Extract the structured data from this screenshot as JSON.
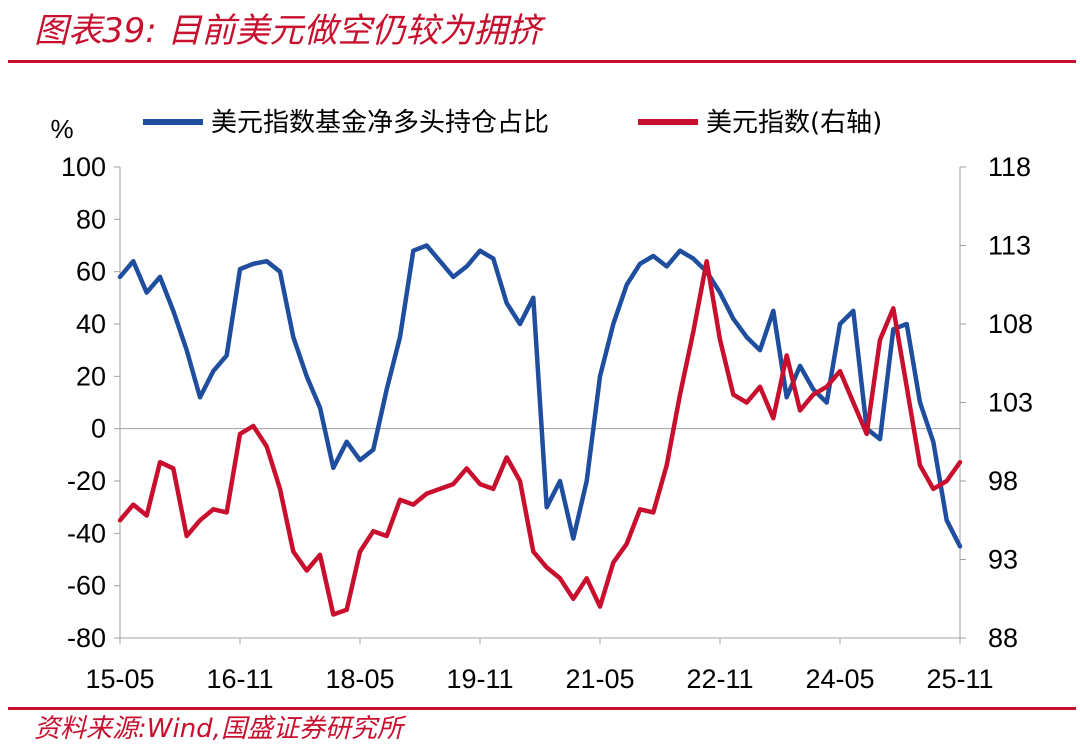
{
  "header": {
    "title": "图表39:  目前美元做空仍较为拥挤"
  },
  "footer": {
    "source": "资料来源:Wind,国盛证券研究所"
  },
  "colors": {
    "accent": "#c8102e",
    "series_blue": "#1f4e9f",
    "series_red": "#c8102e"
  },
  "chart_data": {
    "type": "line",
    "y_left_unit": "%",
    "ylim_left": [
      -80,
      100
    ],
    "yticks_left": [
      "100",
      "80",
      "60",
      "40",
      "20",
      "0",
      "-20",
      "-40",
      "-60",
      "-80"
    ],
    "ylim_right": [
      88,
      118
    ],
    "yticks_right": [
      "118",
      "113",
      "108",
      "103",
      "98",
      "93",
      "88"
    ],
    "x_range": [
      "2015-05",
      "2025-11"
    ],
    "xticks": [
      "15-05",
      "16-11",
      "18-05",
      "19-11",
      "21-05",
      "22-11",
      "24-05",
      "25-11"
    ],
    "legend_position": "top",
    "grid": false,
    "series": [
      {
        "name": "美元指数基金净多头持仓占比",
        "axis": "left",
        "color": "#1f4e9f",
        "x": [
          "2015-05",
          "2015-07",
          "2015-09",
          "2015-11",
          "2016-01",
          "2016-03",
          "2016-05",
          "2016-07",
          "2016-09",
          "2016-11",
          "2017-01",
          "2017-03",
          "2017-05",
          "2017-07",
          "2017-09",
          "2017-11",
          "2018-01",
          "2018-03",
          "2018-05",
          "2018-07",
          "2018-09",
          "2018-11",
          "2019-01",
          "2019-03",
          "2019-05",
          "2019-07",
          "2019-09",
          "2019-11",
          "2020-01",
          "2020-03",
          "2020-05",
          "2020-07",
          "2020-09",
          "2020-11",
          "2021-01",
          "2021-03",
          "2021-05",
          "2021-07",
          "2021-09",
          "2021-11",
          "2022-01",
          "2022-03",
          "2022-05",
          "2022-07",
          "2022-09",
          "2022-11",
          "2023-01",
          "2023-03",
          "2023-05",
          "2023-07",
          "2023-09",
          "2023-11",
          "2024-01",
          "2024-03",
          "2024-05",
          "2024-07",
          "2024-09",
          "2024-11",
          "2025-01",
          "2025-03",
          "2025-05",
          "2025-07",
          "2025-09",
          "2025-11"
        ],
        "values": [
          58,
          64,
          52,
          58,
          45,
          30,
          12,
          22,
          28,
          61,
          63,
          64,
          60,
          35,
          20,
          8,
          -15,
          -5,
          -12,
          -8,
          15,
          35,
          68,
          70,
          64,
          58,
          62,
          68,
          65,
          48,
          40,
          50,
          -30,
          -20,
          -42,
          -20,
          20,
          40,
          55,
          63,
          66,
          62,
          68,
          65,
          60,
          52,
          42,
          35,
          30,
          45,
          12,
          24,
          15,
          10,
          40,
          45,
          0,
          -4,
          38,
          40,
          10,
          -5,
          -35,
          -45
        ]
      },
      {
        "name": "美元指数(右轴)",
        "axis": "right",
        "color": "#c8102e",
        "x": [
          "2015-05",
          "2015-07",
          "2015-09",
          "2015-11",
          "2016-01",
          "2016-03",
          "2016-05",
          "2016-07",
          "2016-09",
          "2016-11",
          "2017-01",
          "2017-03",
          "2017-05",
          "2017-07",
          "2017-09",
          "2017-11",
          "2018-01",
          "2018-03",
          "2018-05",
          "2018-07",
          "2018-09",
          "2018-11",
          "2019-01",
          "2019-03",
          "2019-05",
          "2019-07",
          "2019-09",
          "2019-11",
          "2020-01",
          "2020-03",
          "2020-05",
          "2020-07",
          "2020-09",
          "2020-11",
          "2021-01",
          "2021-03",
          "2021-05",
          "2021-07",
          "2021-09",
          "2021-11",
          "2022-01",
          "2022-03",
          "2022-05",
          "2022-07",
          "2022-09",
          "2022-11",
          "2023-01",
          "2023-03",
          "2023-05",
          "2023-07",
          "2023-09",
          "2023-11",
          "2024-01",
          "2024-03",
          "2024-05",
          "2024-07",
          "2024-09",
          "2024-11",
          "2025-01",
          "2025-03",
          "2025-05",
          "2025-07",
          "2025-09",
          "2025-11"
        ],
        "values": [
          95.5,
          96.5,
          95.8,
          99.2,
          98.8,
          94.5,
          95.5,
          96.2,
          96.0,
          101.0,
          101.5,
          100.2,
          97.5,
          93.5,
          92.3,
          93.3,
          89.5,
          89.8,
          93.5,
          94.8,
          94.5,
          96.8,
          96.5,
          97.2,
          97.5,
          97.8,
          98.8,
          97.8,
          97.5,
          99.5,
          98.0,
          93.5,
          92.5,
          91.8,
          90.5,
          91.8,
          90.0,
          92.8,
          94.0,
          96.2,
          96.0,
          99.0,
          103.5,
          107.5,
          112.0,
          107.0,
          103.5,
          103.0,
          104.0,
          102.0,
          106.0,
          102.5,
          103.5,
          104.0,
          105.0,
          103.0,
          101.0,
          107.0,
          109.0,
          104.0,
          99.0,
          97.5,
          98.0,
          99.2
        ]
      }
    ]
  }
}
